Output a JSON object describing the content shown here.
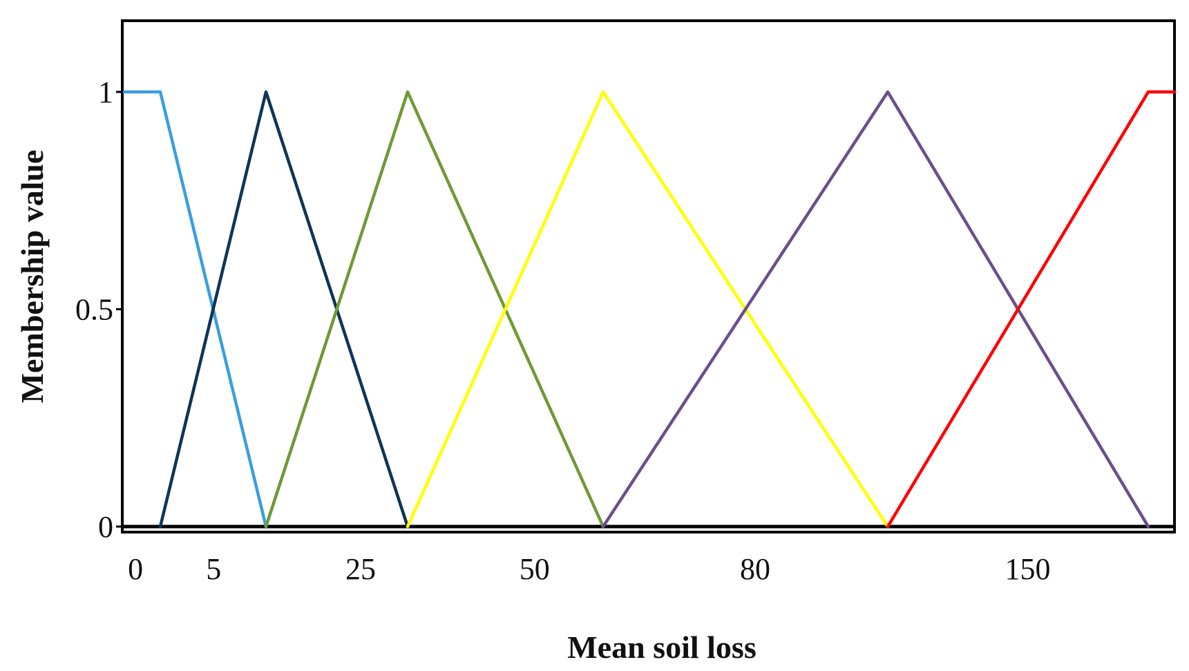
{
  "chart_data": {
    "type": "line",
    "title": "",
    "xlabel": "Mean soil loss",
    "ylabel": "Membership value",
    "ylim": [
      0,
      1.16
    ],
    "y_ticks": [
      {
        "value": 0,
        "label": "0"
      },
      {
        "value": 0.5,
        "label": "0.5"
      },
      {
        "value": 1,
        "label": "1"
      }
    ],
    "x_tick_labels": [
      {
        "value": 0.1,
        "label": "0"
      },
      {
        "value": 5.6,
        "label": "5"
      },
      {
        "value": 25,
        "label": "25"
      },
      {
        "value": 50,
        "label": "50"
      },
      {
        "value": 80,
        "label": "80"
      },
      {
        "value": 150,
        "label": "150"
      }
    ],
    "grid": false,
    "legend": "none",
    "series": [
      {
        "color": "#3a9ee0",
        "x": [
          0,
          2.5,
          10
        ],
        "y": [
          1,
          1,
          0
        ]
      },
      {
        "color": "#0d3558",
        "x": [
          2.5,
          10,
          35
        ],
        "y": [
          0,
          1,
          0
        ]
      },
      {
        "color": "#6e9a35",
        "x": [
          10,
          35,
          60
        ],
        "y": [
          0,
          1,
          0
        ]
      },
      {
        "color": "#ffff00",
        "x": [
          35,
          60,
          100
        ],
        "y": [
          0,
          1,
          0
        ]
      },
      {
        "color": "#6b4f8a",
        "x": [
          60,
          100,
          200
        ],
        "y": [
          0,
          1,
          0
        ]
      },
      {
        "color": "#ff0000",
        "x": [
          100,
          200,
          220
        ],
        "y": [
          0,
          1,
          1
        ]
      }
    ]
  }
}
